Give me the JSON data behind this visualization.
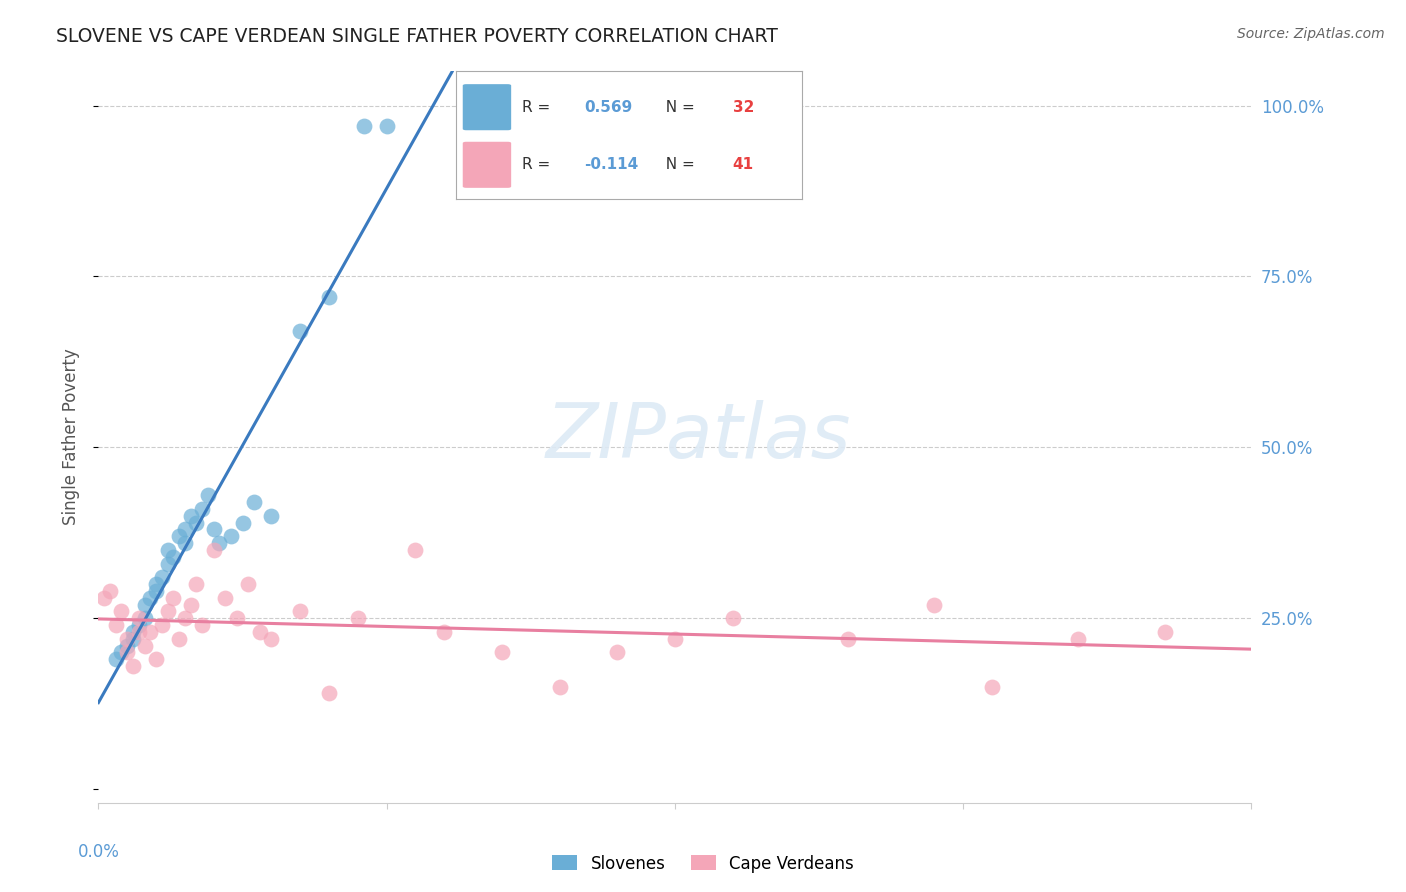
{
  "title": "SLOVENE VS CAPE VERDEAN SINGLE FATHER POVERTY CORRELATION CHART",
  "source": "Source: ZipAtlas.com",
  "ylabel": "Single Father Poverty",
  "blue_R": 0.569,
  "blue_N": 32,
  "pink_R": -0.114,
  "pink_N": 41,
  "blue_color": "#6aaed6",
  "pink_color": "#f4a6b8",
  "blue_line_color": "#3a7abf",
  "pink_line_color": "#e87fa0",
  "title_color": "#222222",
  "source_color": "#666666",
  "ylabel_color": "#555555",
  "right_tick_color": "#5b9bd5",
  "bottom_tick_color": "#5b9bd5",
  "grid_color": "#cccccc",
  "background_color": "#ffffff",
  "watermark_text": "ZIPatlas",
  "watermark_color": "#ddeaf5",
  "xlim": [
    0.0,
    0.2
  ],
  "ylim": [
    -0.02,
    1.05
  ],
  "slovene_x": [
    0.003,
    0.004,
    0.005,
    0.006,
    0.006,
    0.007,
    0.008,
    0.008,
    0.009,
    0.01,
    0.01,
    0.011,
    0.012,
    0.012,
    0.013,
    0.014,
    0.015,
    0.015,
    0.016,
    0.017,
    0.018,
    0.019,
    0.02,
    0.021,
    0.023,
    0.025,
    0.027,
    0.03,
    0.035,
    0.04,
    0.046,
    0.05
  ],
  "slovene_y": [
    0.19,
    0.2,
    0.21,
    0.22,
    0.23,
    0.24,
    0.25,
    0.27,
    0.28,
    0.3,
    0.29,
    0.31,
    0.33,
    0.35,
    0.34,
    0.37,
    0.38,
    0.36,
    0.4,
    0.39,
    0.41,
    0.43,
    0.38,
    0.36,
    0.37,
    0.39,
    0.42,
    0.4,
    0.67,
    0.72,
    0.97,
    0.97
  ],
  "cape_x": [
    0.001,
    0.002,
    0.003,
    0.004,
    0.005,
    0.005,
    0.006,
    0.007,
    0.007,
    0.008,
    0.009,
    0.01,
    0.011,
    0.012,
    0.013,
    0.014,
    0.015,
    0.016,
    0.017,
    0.018,
    0.02,
    0.022,
    0.024,
    0.026,
    0.028,
    0.03,
    0.035,
    0.04,
    0.045,
    0.055,
    0.06,
    0.07,
    0.08,
    0.09,
    0.1,
    0.11,
    0.13,
    0.145,
    0.155,
    0.17,
    0.185
  ],
  "cape_y": [
    0.28,
    0.29,
    0.24,
    0.26,
    0.2,
    0.22,
    0.18,
    0.23,
    0.25,
    0.21,
    0.23,
    0.19,
    0.24,
    0.26,
    0.28,
    0.22,
    0.25,
    0.27,
    0.3,
    0.24,
    0.35,
    0.28,
    0.25,
    0.3,
    0.23,
    0.22,
    0.26,
    0.14,
    0.25,
    0.35,
    0.23,
    0.2,
    0.15,
    0.2,
    0.22,
    0.25,
    0.22,
    0.27,
    0.15,
    0.22,
    0.23
  ],
  "legend_R_color": "#5b9bd5",
  "legend_N_color": "#e84040"
}
